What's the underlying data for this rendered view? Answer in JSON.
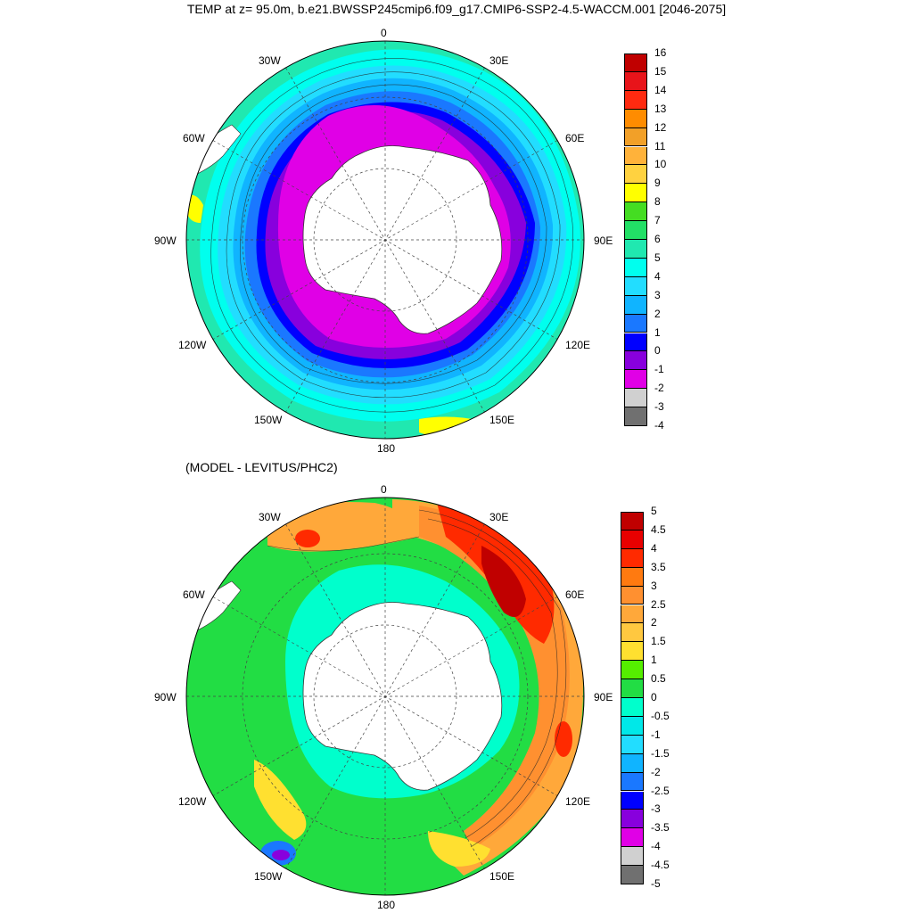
{
  "title": "TEMP at z=  95.0m, b.e21.BWSSP245cmip6.f09_g17.CMIP6-SSP2-4.5-WACCM.001 [2046-2075]",
  "subtitle": "(MODEL - LEVITUS/PHC2)",
  "longitude_labels": {
    "0": "0",
    "30E": "30E",
    "60E": "60E",
    "90E": "90E",
    "120E": "120E",
    "150E": "150E",
    "180": "180",
    "150W": "150W",
    "120W": "120W",
    "90W": "90W",
    "60W": "60W",
    "30W": "30W"
  },
  "panels": [
    {
      "id": "temperature",
      "colorbar": {
        "labels": [
          "16",
          "15",
          "14",
          "13",
          "12",
          "11",
          "10",
          "9",
          "8",
          "7",
          "6",
          "5",
          "4",
          "3",
          "2",
          "1",
          "0",
          "-1",
          "-2",
          "-3",
          "-4"
        ],
        "colors": [
          "#c00000",
          "#e8141a",
          "#ff2a10",
          "#ff8c00",
          "#f2a028",
          "#ffb23a",
          "#ffd240",
          "#ffff00",
          "#44dd22",
          "#22e066",
          "#20e8b0",
          "#00ffee",
          "#22ddff",
          "#10b4ff",
          "#1a78ff",
          "#0000ff",
          "#8800dd",
          "#e000e6",
          "#d0d0d0",
          "#707070"
        ]
      }
    },
    {
      "id": "difference",
      "colorbar": {
        "labels": [
          "5",
          "4.5",
          "4",
          "3.5",
          "3",
          "2.5",
          "2",
          "1.5",
          "1",
          "0.5",
          "0",
          "-0.5",
          "-1",
          "-1.5",
          "-2",
          "-2.5",
          "-3",
          "-3.5",
          "-4",
          "-4.5",
          "-5"
        ],
        "colors": [
          "#c00000",
          "#e80000",
          "#ff2a00",
          "#ff7a10",
          "#ff9030",
          "#ffa83a",
          "#ffc840",
          "#ffe030",
          "#55ee00",
          "#22dd44",
          "#00ffcc",
          "#00e8e8",
          "#22ddff",
          "#10b4ff",
          "#1a78ff",
          "#0000ff",
          "#8800dd",
          "#e000e6",
          "#d0d0d0",
          "#707070"
        ]
      }
    }
  ]
}
